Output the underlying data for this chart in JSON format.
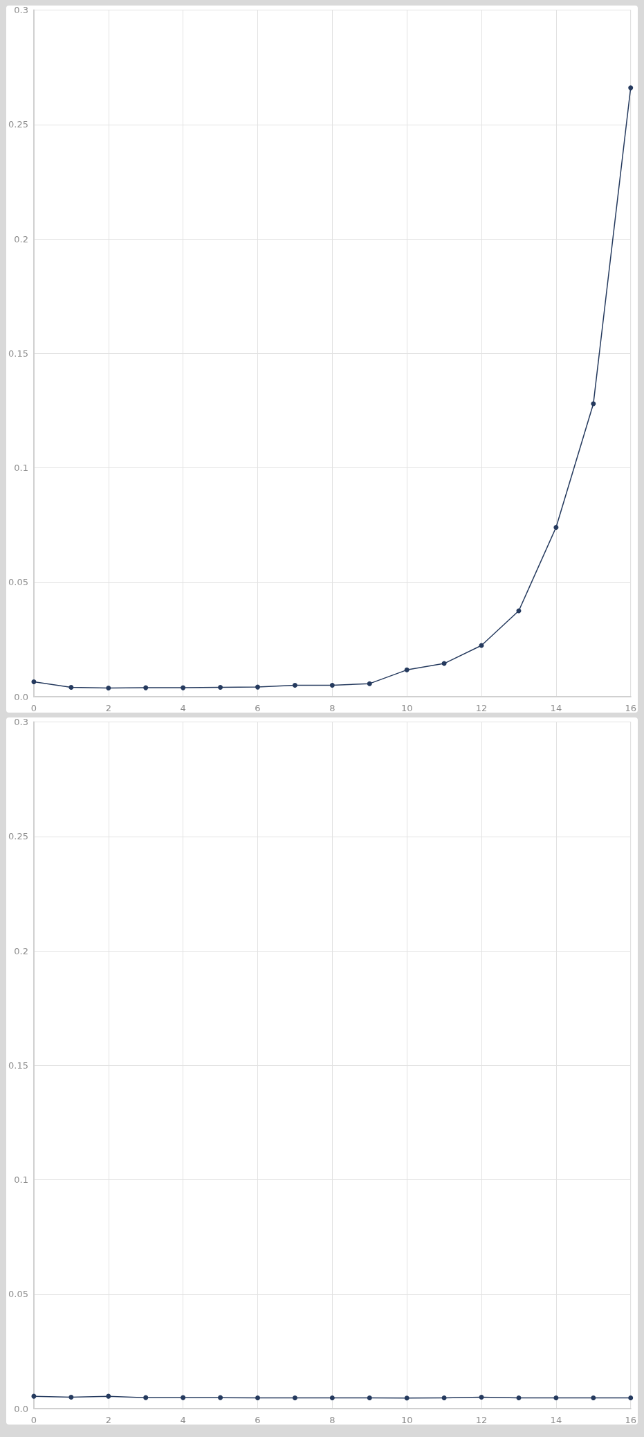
{
  "chart_data": [
    {
      "type": "line",
      "x": [
        0,
        1,
        2,
        3,
        4,
        5,
        6,
        7,
        8,
        9,
        10,
        11,
        12,
        13,
        14,
        15,
        16
      ],
      "series": [
        {
          "color": "#253a5e",
          "values": [
            0.0065,
            0.0041,
            0.0038,
            0.0039,
            0.0039,
            0.0041,
            0.0042,
            0.005,
            0.005,
            0.0057,
            0.0117,
            0.0145,
            0.0224,
            0.0375,
            0.074,
            0.128,
            0.266
          ]
        }
      ],
      "xlim": [
        0,
        16
      ],
      "xticks": [
        0,
        2,
        4,
        6,
        8,
        10,
        12,
        14,
        16
      ],
      "ylim": [
        0,
        0.3
      ],
      "yticks": [
        {
          "value": 0,
          "label": "0.0"
        },
        0.05,
        0.1,
        0.15,
        0.2,
        0.25,
        0.3
      ],
      "grid": true,
      "marker": "circle",
      "line_style": "solid"
    },
    {
      "type": "line",
      "x": [
        0,
        1,
        2,
        3,
        4,
        5,
        6,
        7,
        8,
        9,
        10,
        11,
        12,
        13,
        14,
        15,
        16
      ],
      "series": [
        {
          "color": "#253a5e",
          "values": [
            0.0054,
            0.005,
            0.0054,
            0.0048,
            0.0048,
            0.0048,
            0.0047,
            0.0047,
            0.0047,
            0.0047,
            0.0046,
            0.0047,
            0.005,
            0.0047,
            0.0047,
            0.0047,
            0.0047
          ]
        }
      ],
      "xlim": [
        0,
        16
      ],
      "xticks": [
        0,
        2,
        4,
        6,
        8,
        10,
        12,
        14,
        16
      ],
      "ylim": [
        0,
        0.3
      ],
      "yticks": [
        {
          "value": 0,
          "label": "0.0"
        },
        0.05,
        0.1,
        0.15,
        0.2,
        0.25,
        0.3
      ],
      "grid": true,
      "marker": "circle",
      "line_style": "solid"
    }
  ]
}
